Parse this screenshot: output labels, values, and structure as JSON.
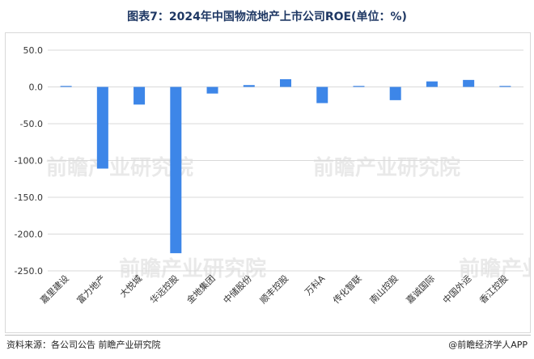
{
  "title": "图表7：2024年中国物流地产上市公司ROE(单位：%)",
  "source_note": "资料来源：各公司公告 前瞻产业研究院",
  "brand_note": "@前瞻经济学人APP",
  "watermark": "前瞻产业研究院",
  "colors": {
    "bar": "#3d86e8",
    "grid": "#d9d9d9",
    "axis_text": "#333333"
  },
  "chart_data": {
    "type": "bar",
    "title": "图表7：2024年中国物流地产上市公司ROE(单位：%)",
    "categories": [
      "嘉里建设",
      "富力地产",
      "大悦城",
      "华远控股",
      "金地集团",
      "中储股份",
      "顺丰控股",
      "万科A",
      "传化智联",
      "南山控股",
      "嘉诚国际",
      "中国外运",
      "香江控股"
    ],
    "values": [
      0.5,
      -111,
      -24,
      -226,
      -9,
      2.5,
      10.5,
      -22,
      0.5,
      -18,
      7.5,
      9.5,
      0.3
    ],
    "ylim": [
      -250,
      50
    ],
    "yticks": [
      50,
      0,
      -50,
      -100,
      -150,
      -200,
      -250
    ],
    "ytick_labels": [
      "50.0",
      "0.0",
      "-50.0",
      "-100.0",
      "-150.0",
      "-200.0",
      "-250.0"
    ],
    "grid": true,
    "xlabel": "",
    "ylabel": ""
  }
}
